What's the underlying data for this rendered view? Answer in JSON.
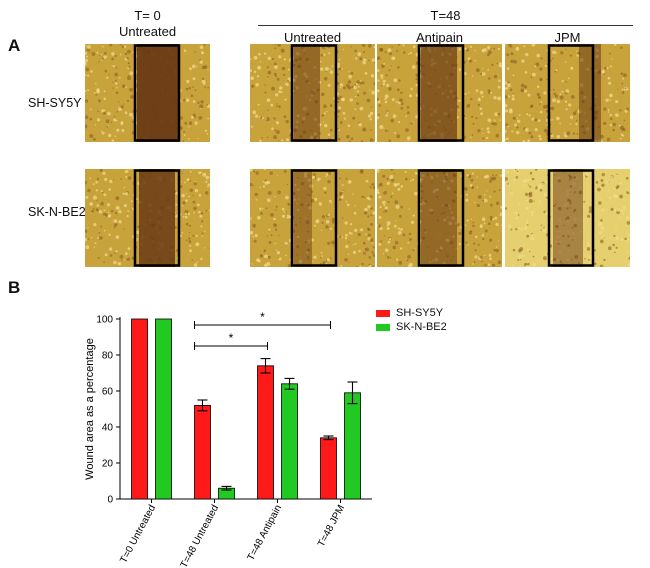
{
  "panel_a": {
    "letter": "A",
    "t0_header": "T= 0",
    "t0_sub": "Untreated",
    "t48_header": "T=48",
    "col_headers": [
      "Untreated",
      "Antipain",
      "JPM"
    ],
    "row_labels": [
      "SH-SY5Y",
      "SK-N-BE2"
    ],
    "colors": {
      "cells": "#c8a23a",
      "cells_light": "#e6cf6e",
      "wound": "#6a3a16",
      "box": "#000000"
    }
  },
  "panel_b": {
    "letter": "B",
    "legend": [
      {
        "label": "SH-SY5Y",
        "color": "#ff1a1a"
      },
      {
        "label": "SK-N-BE2",
        "color": "#22c922"
      }
    ]
  },
  "chart_data": {
    "type": "bar",
    "categories": [
      "T=0 Untreated",
      "T=48 Untreated",
      "T=48 Antipain",
      "T=48 JPM"
    ],
    "series": [
      {
        "name": "SH-SY5Y",
        "color": "#ff1a1a",
        "values": [
          100,
          52,
          74,
          34
        ],
        "errors": [
          0,
          3,
          4,
          1
        ]
      },
      {
        "name": "SK-N-BE2",
        "color": "#22c922",
        "values": [
          100,
          6,
          64,
          59
        ],
        "errors": [
          0,
          1,
          3,
          6
        ]
      }
    ],
    "ylabel": "Wound area as a percentage",
    "xlabel": "",
    "ylim": [
      0,
      100
    ],
    "yticks": [
      0,
      20,
      40,
      60,
      80,
      100
    ],
    "significance": [
      {
        "from": 1,
        "to": 2,
        "label": "*"
      },
      {
        "from": 1,
        "to": 3,
        "label": "*"
      }
    ],
    "legend_position": "top-right",
    "grid": false
  }
}
